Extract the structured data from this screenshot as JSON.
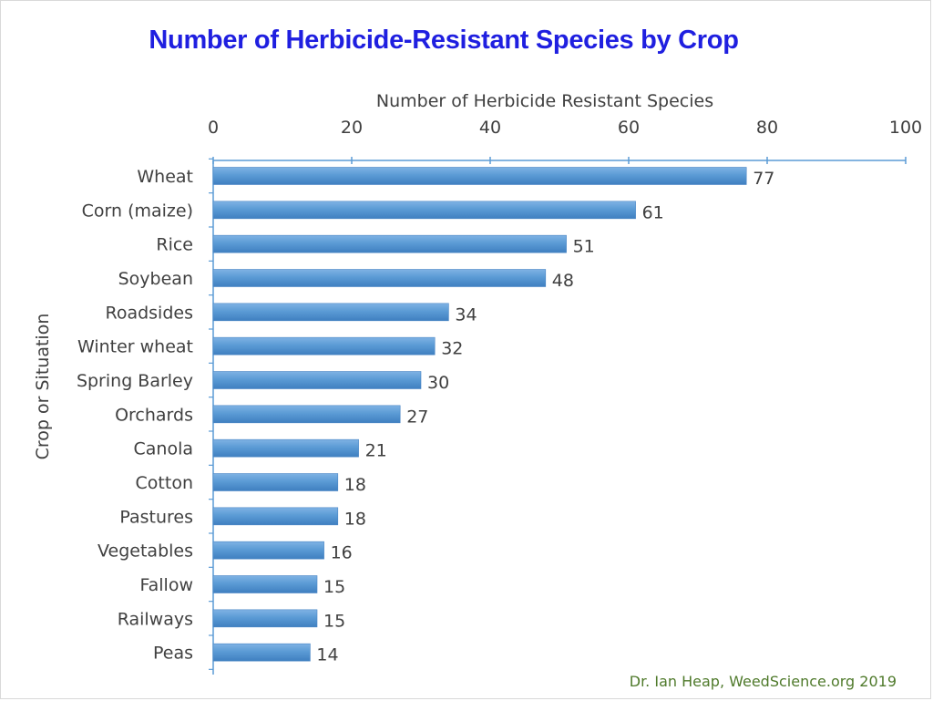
{
  "chart_data": {
    "type": "bar",
    "orientation": "horizontal",
    "title": "Number of Herbicide-Resistant Species by Crop",
    "xlabel": "Number of Herbicide Resistant Species",
    "ylabel": "Crop or Situation",
    "xlim": [
      0,
      100
    ],
    "x_ticks": [
      0,
      20,
      40,
      60,
      80,
      100
    ],
    "x_axis_position": "top",
    "categories": [
      "Wheat",
      "Corn (maize)",
      "Rice",
      "Soybean",
      "Roadsides",
      "Winter wheat",
      "Spring Barley",
      "Orchards",
      "Canola",
      "Cotton",
      "Pastures",
      "Vegetables",
      "Fallow",
      "Railways",
      "Peas"
    ],
    "values": [
      77,
      61,
      51,
      48,
      34,
      32,
      30,
      27,
      21,
      18,
      18,
      16,
      15,
      15,
      14
    ],
    "bar_color": "#5b9bd5",
    "data_labels": true,
    "grid": false
  },
  "credit": "Dr. Ian Heap, WeedScience.org 2019",
  "colors": {
    "title": "#1f1fe0",
    "bar": "#5b9bd5",
    "axis": "#5b9bd5",
    "text": "#404040",
    "credit": "#4f7a2b"
  }
}
